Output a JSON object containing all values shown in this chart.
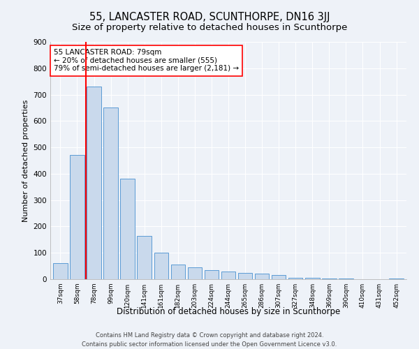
{
  "title": "55, LANCASTER ROAD, SCUNTHORPE, DN16 3JJ",
  "subtitle": "Size of property relative to detached houses in Scunthorpe",
  "xlabel": "Distribution of detached houses by size in Scunthorpe",
  "ylabel": "Number of detached properties",
  "categories": [
    "37sqm",
    "58sqm",
    "78sqm",
    "99sqm",
    "120sqm",
    "141sqm",
    "161sqm",
    "182sqm",
    "203sqm",
    "224sqm",
    "244sqm",
    "265sqm",
    "286sqm",
    "307sqm",
    "327sqm",
    "348sqm",
    "369sqm",
    "390sqm",
    "410sqm",
    "431sqm",
    "452sqm"
  ],
  "values": [
    60,
    470,
    730,
    650,
    380,
    165,
    100,
    55,
    45,
    35,
    30,
    25,
    20,
    15,
    5,
    5,
    3,
    2,
    1,
    1,
    2
  ],
  "bar_color": "#c9d9ec",
  "bar_edge_color": "#5b9bd5",
  "red_line_x": 1.5,
  "annotation_title": "55 LANCASTER ROAD: 79sqm",
  "annotation_line1": "← 20% of detached houses are smaller (555)",
  "annotation_line2": "79% of semi-detached houses are larger (2,181) →",
  "ylim": [
    0,
    900
  ],
  "yticks": [
    0,
    100,
    200,
    300,
    400,
    500,
    600,
    700,
    800,
    900
  ],
  "background_color": "#eef2f8",
  "grid_color": "#ffffff",
  "footer1": "Contains HM Land Registry data © Crown copyright and database right 2024.",
  "footer2": "Contains public sector information licensed under the Open Government Licence v3.0.",
  "title_fontsize": 10.5,
  "subtitle_fontsize": 9.5,
  "xlabel_fontsize": 8.5,
  "ylabel_fontsize": 8
}
